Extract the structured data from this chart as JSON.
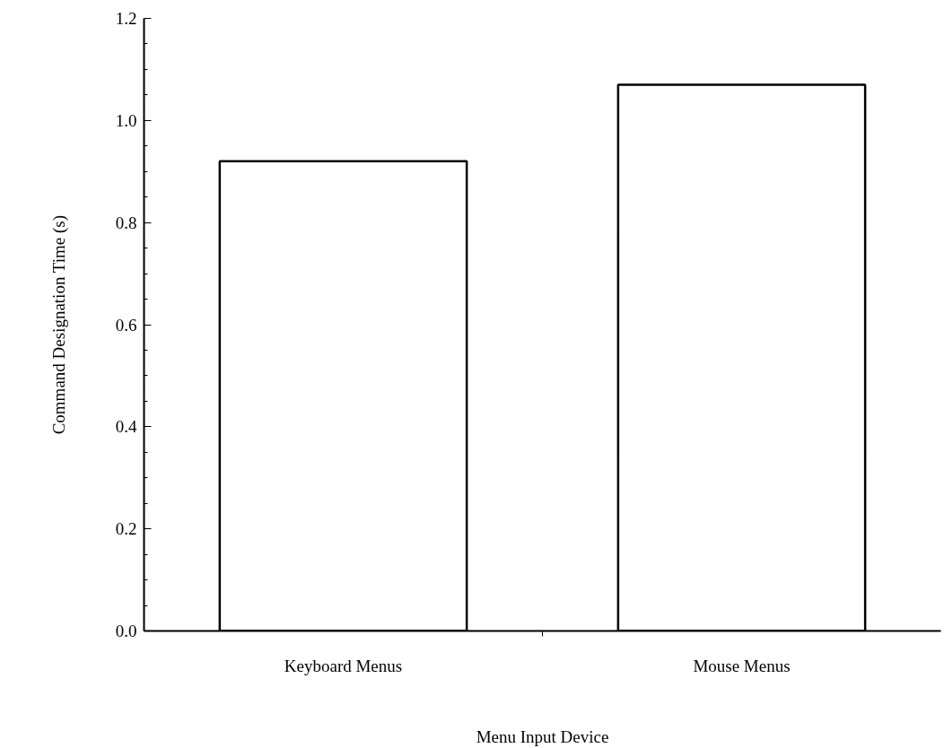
{
  "chart_data": {
    "type": "bar",
    "xlabel": "Menu Input Device",
    "ylabel": "Command Designation Time (s)",
    "categories": [
      "Keyboard Menus",
      "Mouse Menus"
    ],
    "values": [
      0.92,
      1.07
    ],
    "color": "#ffffff",
    "ylim": [
      0,
      1.2
    ],
    "yticks": [
      {
        "value": 0,
        "label": "0.0"
      },
      {
        "value": 0.2,
        "label": "0.2"
      },
      {
        "value": 0.4,
        "label": "0.4"
      },
      {
        "value": 0.6,
        "label": "0.6"
      },
      {
        "value": 0.8,
        "label": "0.8"
      },
      {
        "value": 1.0,
        "label": "1.0"
      },
      {
        "value": 1.2,
        "label": "1.2"
      }
    ],
    "grid": false
  }
}
